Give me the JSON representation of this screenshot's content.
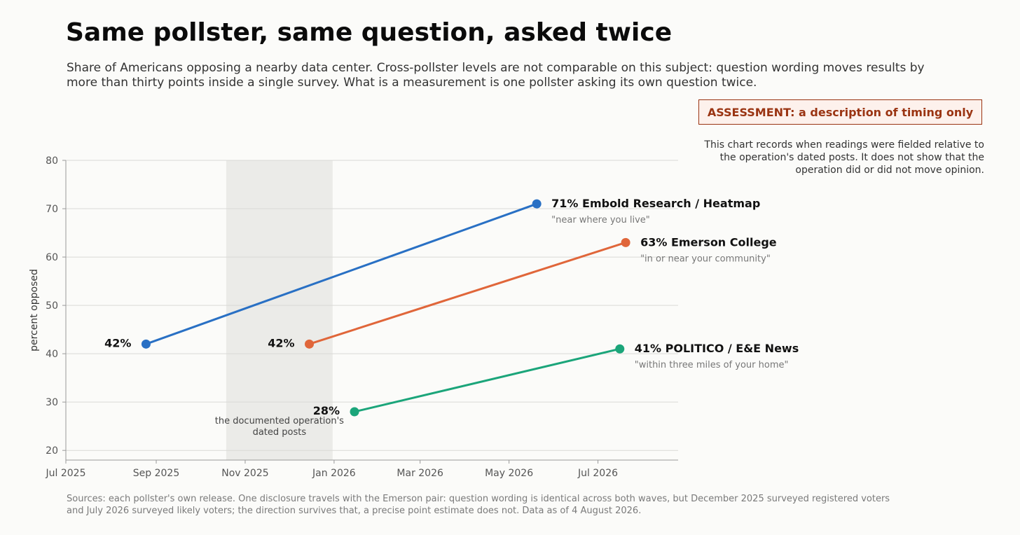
{
  "header": {
    "title": "Same pollster, same question, asked twice",
    "subtitle": "Share of Americans opposing a nearby data center. Cross-pollster levels are not comparable on this subject: question wording moves results by more than thirty points inside a single survey. What is a measurement is one pollster asking its own question twice."
  },
  "assessment": {
    "label": "ASSESSMENT: a description of timing only",
    "note": "This chart records when readings were fielded relative to the operation's dated posts. It does not show that the operation did or did not move opinion."
  },
  "footer": {
    "sources": "Sources: each pollster's own release. One disclosure travels with the Emerson pair: question wording is identical across both waves, but December 2025 surveyed registered voters and July 2026 surveyed likely voters; the direction survives that, a precise point estimate does not. Data as of 4 August 2026."
  },
  "chart_data": {
    "type": "line",
    "ylabel": "percent opposed",
    "ylim": [
      18,
      80
    ],
    "yticks": [
      20,
      30,
      40,
      50,
      60,
      70,
      80
    ],
    "xlim": [
      "2025-07-01",
      "2026-08-25"
    ],
    "xticks": [
      {
        "date": "2025-07-01",
        "label": "Jul 2025"
      },
      {
        "date": "2025-09-01",
        "label": "Sep 2025"
      },
      {
        "date": "2025-11-01",
        "label": "Nov 2025"
      },
      {
        "date": "2026-01-01",
        "label": "Jan 2026"
      },
      {
        "date": "2026-03-01",
        "label": "Mar 2026"
      },
      {
        "date": "2026-05-01",
        "label": "May 2026"
      },
      {
        "date": "2026-07-01",
        "label": "Jul 2026"
      }
    ],
    "grid": "horizontal",
    "shaded_region": {
      "start": "2025-10-19",
      "end": "2025-12-31",
      "label": "the documented operation's dated posts"
    },
    "series": [
      {
        "name": "Embold Research / Heatmap",
        "question": "\"near where you live\"",
        "color": "#2970c4",
        "points": [
          {
            "x": "2025-08-25",
            "y": 42,
            "label": "42%"
          },
          {
            "x": "2026-05-20",
            "y": 71,
            "label": "71%"
          }
        ]
      },
      {
        "name": "Emerson College",
        "question": "\"in or near your community\"",
        "color": "#e0663a",
        "points": [
          {
            "x": "2025-12-15",
            "y": 42,
            "label": "42%"
          },
          {
            "x": "2026-07-20",
            "y": 63,
            "label": "63%"
          }
        ]
      },
      {
        "name": "POLITICO / E&E News",
        "question": "\"within three miles of your home\"",
        "color": "#1ba57a",
        "points": [
          {
            "x": "2026-01-15",
            "y": 28,
            "label": "28%"
          },
          {
            "x": "2026-07-16",
            "y": 41,
            "label": "41%"
          }
        ]
      }
    ]
  }
}
